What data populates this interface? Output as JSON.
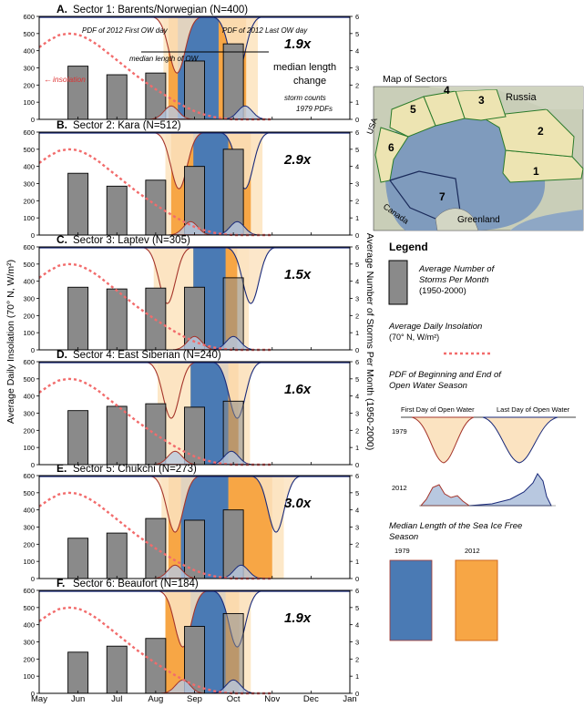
{
  "colors": {
    "bar": "#8a8a8a",
    "blue_season": "#4a7ab4",
    "orange_season": "#f7a645",
    "light_orange": "#fde6c2",
    "pdf1979_fill": "#fbe3c1",
    "pdf1979_line": "#a5352b",
    "pdf2012_fill": "#b8c8e0",
    "pdf2012_line": "#1a2a7a",
    "insolation": "#f26c6c",
    "map_land": "#cfd4bf",
    "map_sector": "#eee5b6",
    "map_sea": "#7f9bbd"
  },
  "figure": {
    "y_left_label": "Average Daily Insolation (70° N, W/m²)",
    "y_right_label": "Average Number of Storms Per Month (1950-2000)",
    "x_ticks": [
      "May",
      "Jun",
      "Jul",
      "Aug",
      "Sep",
      "Oct",
      "Nov",
      "Dec",
      "Jan"
    ],
    "left_ticks": [
      0,
      100,
      200,
      300,
      400,
      500,
      600
    ],
    "right_ticks": [
      0,
      1,
      2,
      3,
      4,
      5,
      6
    ]
  },
  "chart_data": [
    {
      "type": "bar",
      "panel": "A.",
      "title": "Sector 1: Barents/Norwegian (N=400)",
      "ratio": "1.9x",
      "categories": [
        "Jun",
        "Jul",
        "Aug",
        "Sep",
        "Oct"
      ],
      "storms": [
        3.1,
        2.6,
        2.7,
        3.4,
        4.4
      ],
      "blue_start": 3.57,
      "blue_end": 4.62,
      "orange_start": 3.33,
      "orange_end": 5.33,
      "pdf1979_valleys": [
        3.55,
        5.1
      ],
      "pdf2012_peaks": [
        3.4,
        5.3
      ],
      "ylim_left": [
        0,
        600
      ],
      "ylim_right": [
        0,
        6
      ]
    },
    {
      "type": "bar",
      "panel": "B.",
      "title": "Sector 2: Kara (N=512)",
      "ratio": "2.9x",
      "categories": [
        "Jun",
        "Jul",
        "Aug",
        "Sep",
        "Oct"
      ],
      "storms": [
        3.6,
        2.85,
        3.2,
        4.0,
        5.0
      ],
      "blue_start": 3.97,
      "blue_end": 4.87,
      "orange_start": 3.4,
      "orange_end": 5.45,
      "pdf1979_valleys": [
        3.6,
        5.3
      ],
      "pdf2012_peaks": [
        3.9,
        5.1
      ],
      "ylim_left": [
        0,
        600
      ],
      "ylim_right": [
        0,
        6
      ]
    },
    {
      "type": "bar",
      "panel": "C.",
      "title": "Sector 3: Laptev (N=305)",
      "ratio": "1.5x",
      "categories": [
        "Jun",
        "Jul",
        "Aug",
        "Sep",
        "Oct"
      ],
      "storms": [
        3.65,
        3.55,
        3.6,
        3.65,
        4.2
      ],
      "blue_start": 3.97,
      "blue_end": 4.8,
      "orange_start": 3.97,
      "orange_end": 5.1,
      "pdf1979_valleys": [
        3.3,
        5.45
      ],
      "pdf2012_peaks": [
        4.0,
        5.0
      ],
      "ylim_left": [
        0,
        600
      ],
      "ylim_right": [
        0,
        6
      ]
    },
    {
      "type": "bar",
      "panel": "D.",
      "title": "Sector 4: East Siberian (N=240)",
      "ratio": "1.6x",
      "categories": [
        "Jun",
        "Jul",
        "Aug",
        "Sep",
        "Oct"
      ],
      "storms": [
        3.15,
        3.4,
        3.55,
        3.35,
        3.7
      ],
      "blue_start": 3.9,
      "blue_end": 4.87,
      "orange_start": 3.9,
      "orange_end": 5.13,
      "pdf1979_valleys": [
        3.4,
        5.1
      ],
      "pdf2012_peaks": [
        3.5,
        4.95
      ],
      "ylim_left": [
        0,
        600
      ],
      "ylim_right": [
        0,
        6
      ]
    },
    {
      "type": "bar",
      "panel": "E.",
      "title": "Sector 5: Chukchi (N=273)",
      "ratio": "3.0x",
      "categories": [
        "Jun",
        "Jul",
        "Aug",
        "Sep",
        "Oct"
      ],
      "storms": [
        2.35,
        2.65,
        3.5,
        3.4,
        4.0
      ],
      "blue_start": 3.65,
      "blue_end": 4.87,
      "orange_start": 3.33,
      "orange_end": 6.0,
      "pdf1979_valleys": [
        3.5,
        6.1
      ],
      "pdf2012_peaks": [
        3.5,
        5.2
      ],
      "ylim_left": [
        0,
        600
      ],
      "ylim_right": [
        0,
        6
      ]
    },
    {
      "type": "bar",
      "panel": "F.",
      "title": "Sector 6: Beaufort (N=184)",
      "ratio": "1.9x",
      "categories": [
        "Jun",
        "Jul",
        "Aug",
        "Sep",
        "Oct"
      ],
      "storms": [
        2.4,
        2.75,
        3.2,
        3.9,
        4.65
      ],
      "blue_start": 3.9,
      "blue_end": 4.8,
      "orange_start": 3.25,
      "orange_end": 5.15,
      "pdf1979_valleys": [
        3.7,
        5.1
      ],
      "pdf2012_peaks": [
        3.7,
        5.0
      ],
      "ylim_left": [
        0,
        600
      ],
      "ylim_right": [
        0,
        6
      ]
    }
  ],
  "insolation_curve": {
    "x_months": [
      0,
      0.25,
      0.5,
      0.75,
      1,
      1.25,
      1.5,
      1.75,
      2,
      2.25,
      2.5,
      2.75,
      3,
      3.25,
      3.5,
      3.75,
      4,
      4.25,
      4.5,
      4.75,
      5,
      5.25,
      5.5,
      5.75,
      6
    ],
    "values_wm2": [
      420,
      460,
      490,
      500,
      495,
      470,
      435,
      390,
      345,
      300,
      255,
      215,
      175,
      140,
      105,
      75,
      48,
      28,
      14,
      5,
      0,
      0,
      0,
      0,
      0
    ]
  },
  "annotations": {
    "pdf_first_day": "PDF of 2012 First OW day",
    "pdf_last_day": "PDF of 2012 Last OW day",
    "median_length_ow": "median length of OW",
    "insolation": "insolation",
    "median_change_line1": "median length",
    "median_change_line2": "change",
    "storm_counts": "storm counts",
    "pdfs_1979": "1979 PDFs"
  },
  "map": {
    "title": "Map of Sectors",
    "labels": {
      "russia": "Russia",
      "usa": "USA",
      "canada": "Canada",
      "greenland": "Greenland",
      "s1": "1",
      "s2": "2",
      "s3": "3",
      "s4": "4",
      "s5": "5",
      "s6": "6",
      "s7": "7"
    }
  },
  "legend": {
    "title": "Legend",
    "storms_line1": "Average Number of",
    "storms_line2": "Storms Per Month",
    "storms_line3": "(1950-2000)",
    "insol_line1": "Average Daily Insolation",
    "insol_line2": "(70° N, W/m²)",
    "pdf_title_line1": "PDF of Beginning and End of",
    "pdf_title_line2": "Open Water Season",
    "first_day": "First Day of Open Water",
    "last_day": "Last Day of Open Water",
    "year_1979": "1979",
    "year_2012": "2012",
    "median_title_line1": "Median Length of the Sea Ice Free",
    "median_title_line2": "Season",
    "box1979": "1979",
    "box2012": "2012"
  }
}
